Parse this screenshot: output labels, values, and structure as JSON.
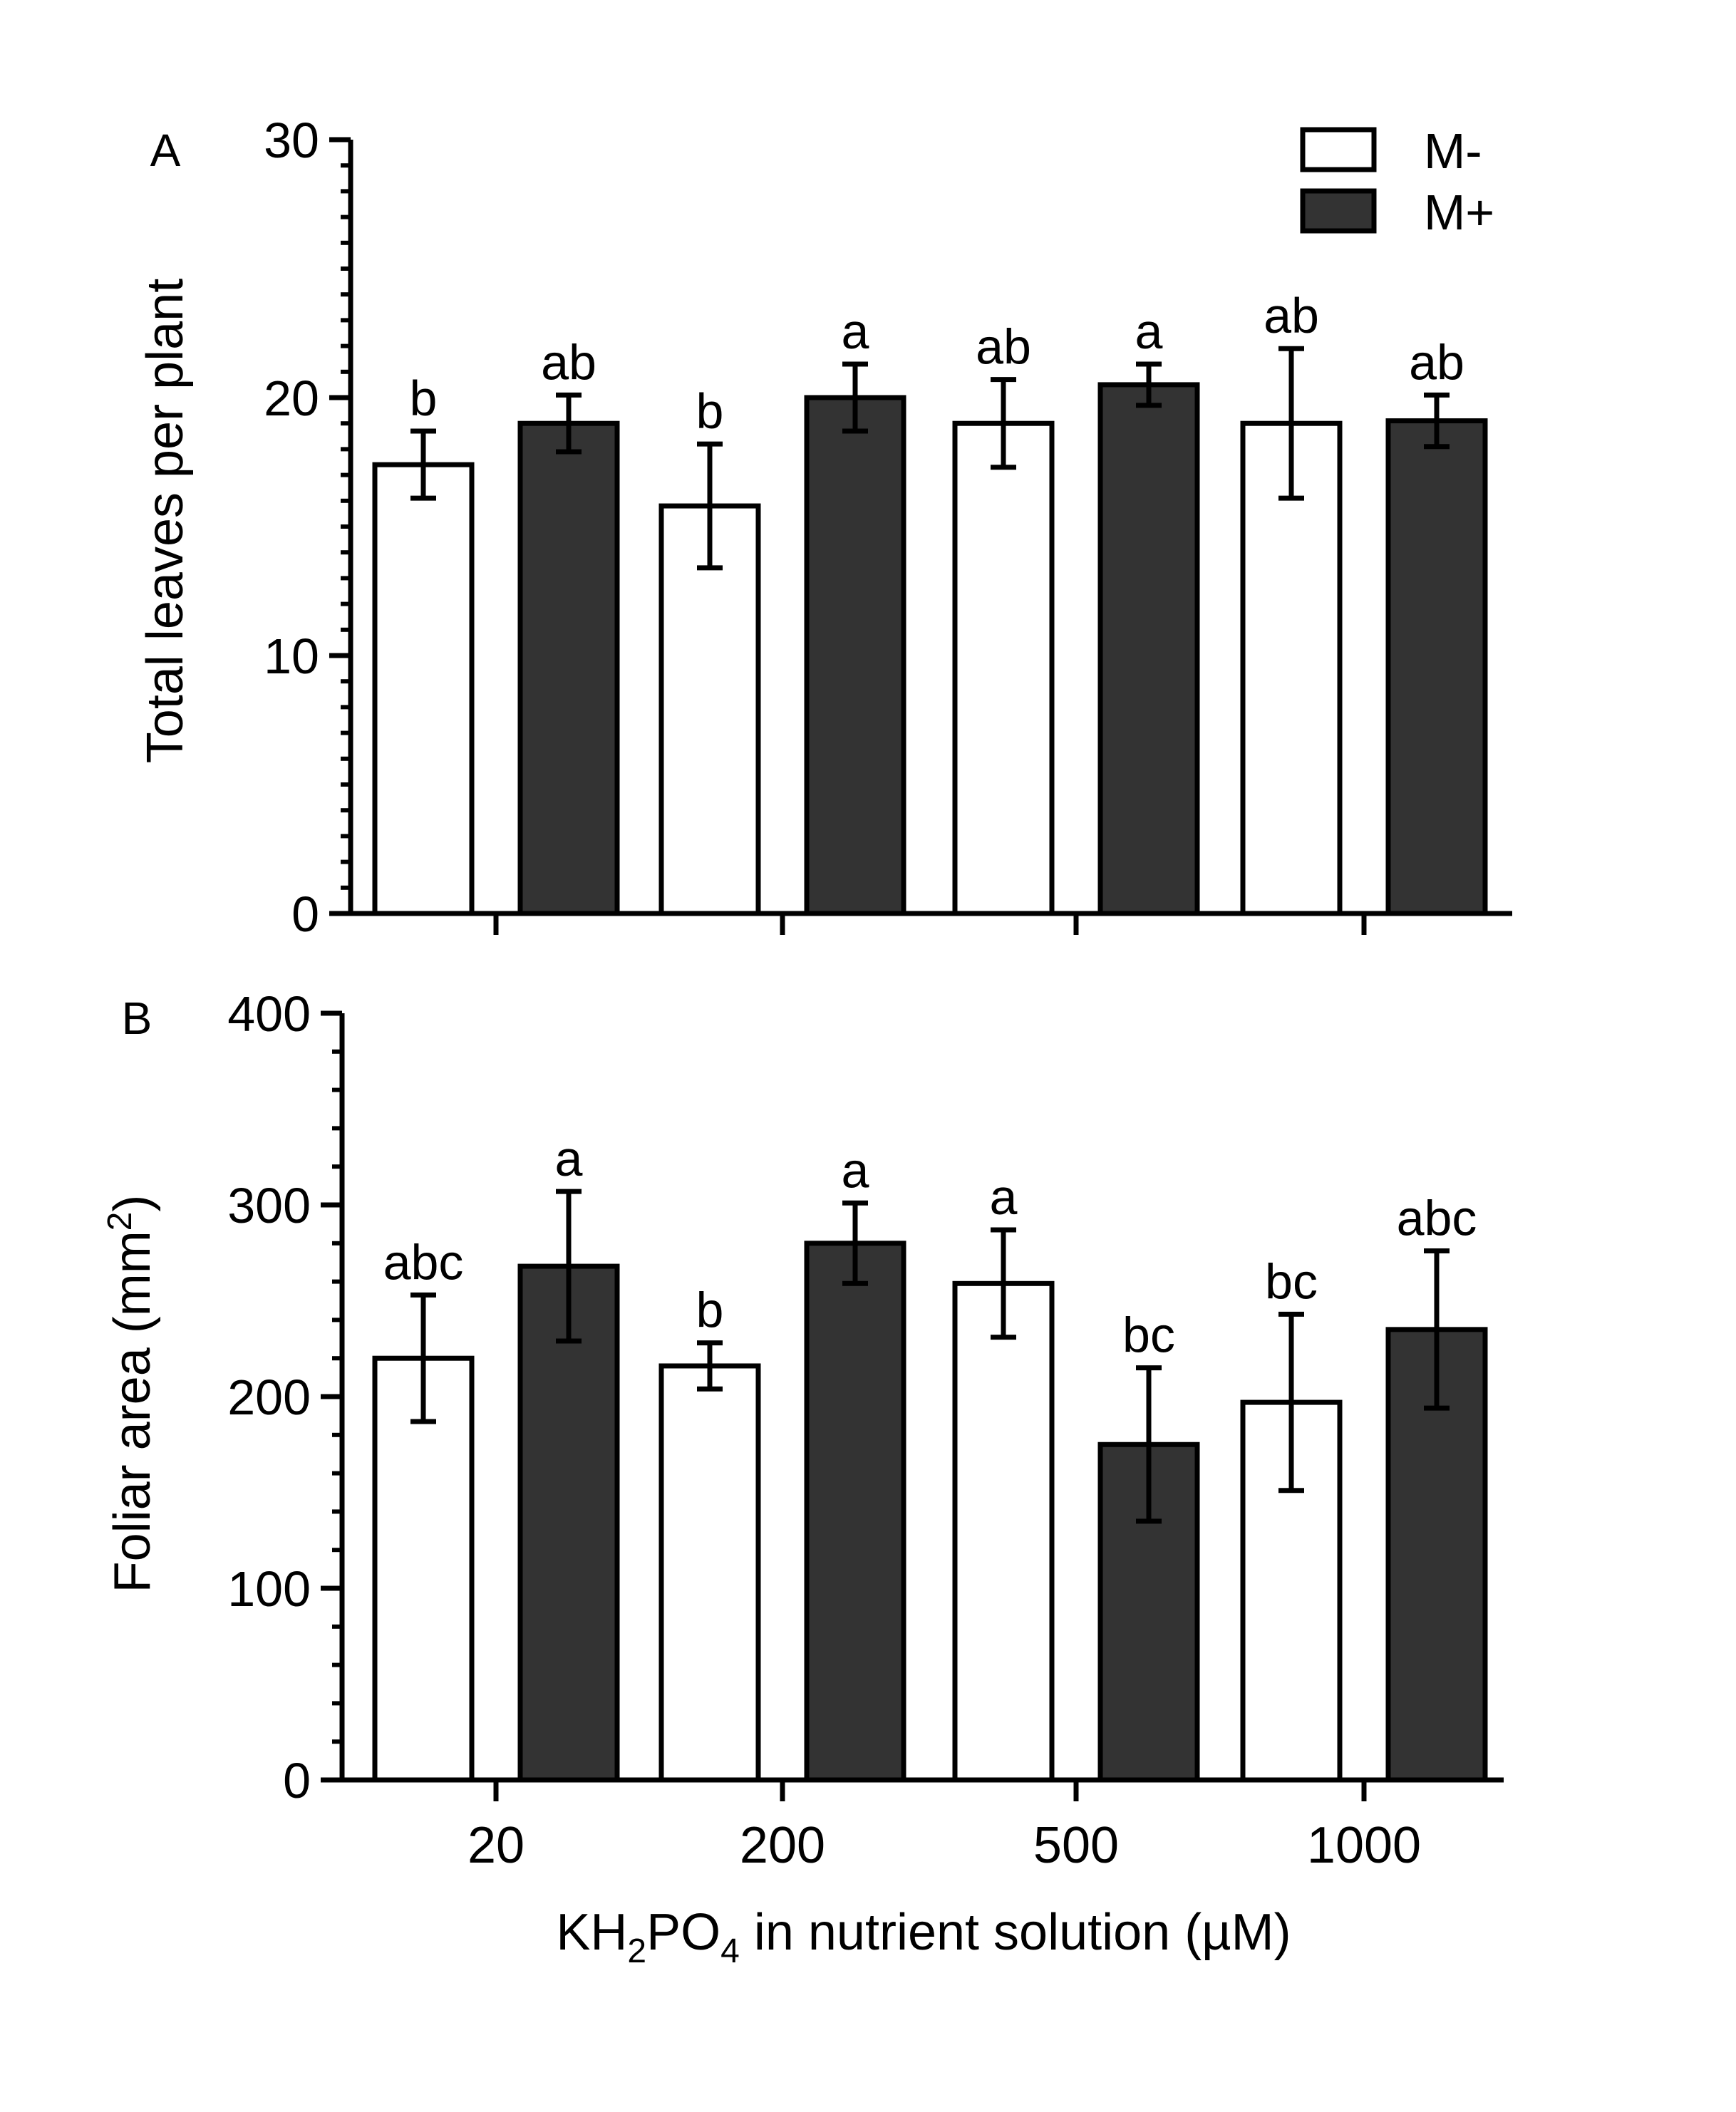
{
  "colors": {
    "m_minus_fill": "#ffffff",
    "m_plus_fill": "#333333",
    "stroke": "#000000"
  },
  "shared_x": {
    "categories": [
      "20",
      "200",
      "500",
      "1000"
    ],
    "xlabel_parts": {
      "main": "KH",
      "sub1": "2",
      "mid": "PO",
      "sub2": "4",
      "tail": " in nutrient solution (µM)"
    }
  },
  "legend": {
    "items": [
      "M-",
      "M+"
    ]
  },
  "chart_data": [
    {
      "type": "bar",
      "panel_label": "A",
      "ylabel": "Total leaves per plant",
      "ylim": [
        0,
        30
      ],
      "yticks": [
        "0",
        "10",
        "20",
        "30"
      ],
      "y_minor_step": 1,
      "categories": [
        "20",
        "200",
        "500",
        "1000"
      ],
      "series": [
        {
          "name": "M-",
          "values": [
            17.4,
            15.8,
            19.0,
            19.0
          ],
          "errors": [
            1.3,
            2.4,
            1.7,
            2.9
          ],
          "letters": [
            "b",
            "b",
            "ab",
            "ab"
          ]
        },
        {
          "name": "M+",
          "values": [
            19.0,
            20.0,
            20.5,
            19.1
          ],
          "errors": [
            1.1,
            1.3,
            0.8,
            1.0
          ],
          "letters": [
            "ab",
            "a",
            "a",
            "ab"
          ]
        }
      ],
      "legend_position": "top-right",
      "grid": false
    },
    {
      "type": "bar",
      "panel_label": "B",
      "ylabel_main": "Foliar area (mm",
      "ylabel_sup": "2",
      "ylabel_tail": ")",
      "ylim": [
        0,
        400
      ],
      "yticks": [
        "0",
        "100",
        "200",
        "300",
        "400"
      ],
      "y_minor_step": 20,
      "categories": [
        "20",
        "200",
        "500",
        "1000"
      ],
      "series": [
        {
          "name": "M-",
          "values": [
            220,
            216,
            259,
            197
          ],
          "errors": [
            33,
            12,
            28,
            46
          ],
          "letters": [
            "abc",
            "b",
            "a",
            "bc"
          ]
        },
        {
          "name": "M+",
          "values": [
            268,
            280,
            175,
            235
          ],
          "errors": [
            39,
            21,
            40,
            41
          ],
          "letters": [
            "a",
            "a",
            "bc",
            "abc"
          ]
        }
      ],
      "grid": false
    }
  ]
}
